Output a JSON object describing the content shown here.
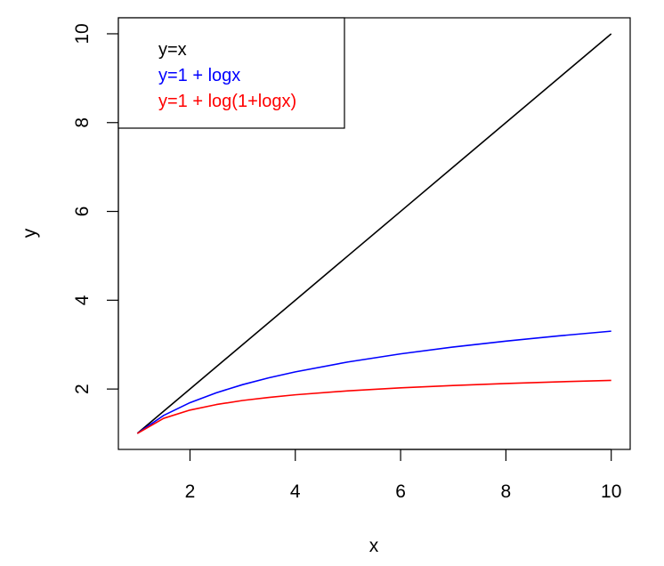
{
  "chart_data": {
    "type": "line",
    "title": "",
    "xlabel": "x",
    "ylabel": "y",
    "xlim": [
      0.64,
      10.36
    ],
    "ylim": [
      0.64,
      10.36
    ],
    "x_ticks": [
      2,
      4,
      6,
      8,
      10
    ],
    "y_ticks": [
      2,
      4,
      6,
      8,
      10
    ],
    "x_tick_labels": [
      "2",
      "4",
      "6",
      "8",
      "10"
    ],
    "y_tick_labels": [
      "2",
      "4",
      "6",
      "8",
      "10"
    ],
    "grid": false,
    "legend_position": "top-left",
    "series": [
      {
        "name": "y=x",
        "color": "#000000",
        "x": [
          1,
          2,
          3,
          4,
          5,
          6,
          7,
          8,
          9,
          10
        ],
        "y": [
          1,
          2,
          3,
          4,
          5,
          6,
          7,
          8,
          9,
          10
        ]
      },
      {
        "name": "y=1 + logx",
        "color": "#0000ff",
        "x": [
          1,
          1.5,
          2,
          2.5,
          3,
          3.5,
          4,
          5,
          6,
          7,
          8,
          9,
          10
        ],
        "y": [
          1,
          1.405,
          1.693,
          1.916,
          2.099,
          2.253,
          2.386,
          2.609,
          2.792,
          2.946,
          3.079,
          3.197,
          3.303
        ]
      },
      {
        "name": "y=1 + log(1+logx)",
        "color": "#ff0000",
        "x": [
          1,
          1.5,
          2,
          2.5,
          3,
          3.5,
          4,
          5,
          6,
          7,
          8,
          9,
          10
        ],
        "y": [
          1,
          1.34,
          1.526,
          1.65,
          1.742,
          1.812,
          1.87,
          1.959,
          2.027,
          2.08,
          2.125,
          2.162,
          2.195
        ]
      }
    ]
  }
}
